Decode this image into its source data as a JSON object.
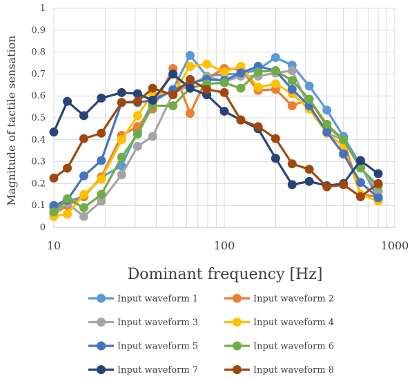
{
  "chart_data": {
    "type": "line",
    "title": "",
    "xlabel": "Dominant frequency [Hz]",
    "ylabel": "Magnitude of tactile sensation",
    "x_scale": "log",
    "xlim": [
      10,
      1000
    ],
    "ylim": [
      0,
      1
    ],
    "x_ticks": [
      "10",
      "100",
      "1000"
    ],
    "y_ticks": [
      "0",
      "0.1",
      "0.2",
      "0.3",
      "0.4",
      "0.5",
      "0.6",
      "0.7",
      "0.8",
      "0.9",
      "1"
    ],
    "grid": true,
    "legend_position": "bottom",
    "x": [
      10,
      12,
      15,
      19,
      25,
      31,
      38,
      50,
      63,
      79,
      100,
      125,
      158,
      200,
      250,
      315,
      400,
      500,
      630,
      800
    ],
    "series": [
      {
        "name": "Input waveform 1",
        "color": "#5B9BD5",
        "values": [
          0.09,
          0.12,
          0.14,
          0.23,
          0.28,
          0.44,
          0.57,
          0.63,
          0.785,
          0.69,
          0.7,
          0.7,
          0.72,
          0.775,
          0.74,
          0.645,
          0.535,
          0.415,
          0.285,
          0.13
        ]
      },
      {
        "name": "Input waveform 2",
        "color": "#ED7D31",
        "values": [
          0.06,
          0.1,
          0.14,
          0.23,
          0.42,
          0.46,
          0.54,
          0.725,
          0.52,
          0.68,
          0.725,
          0.72,
          0.625,
          0.63,
          0.555,
          0.585,
          0.46,
          0.4,
          0.15,
          0.14
        ]
      },
      {
        "name": "Input waveform 3",
        "color": "#A5A5A5",
        "values": [
          0.07,
          0.11,
          0.05,
          0.12,
          0.24,
          0.37,
          0.415,
          0.61,
          0.65,
          0.69,
          0.665,
          0.69,
          0.69,
          0.705,
          0.715,
          0.55,
          0.43,
          0.4,
          0.275,
          0.165
        ]
      },
      {
        "name": "Input waveform 4",
        "color": "#FFC000",
        "values": [
          0.05,
          0.06,
          0.15,
          0.22,
          0.4,
          0.51,
          0.61,
          0.61,
          0.735,
          0.745,
          0.71,
          0.735,
          0.64,
          0.655,
          0.61,
          0.54,
          0.43,
          0.37,
          0.15,
          0.12
        ]
      },
      {
        "name": "Input waveform 5",
        "color": "#4472C4",
        "values": [
          0.1,
          0.125,
          0.235,
          0.305,
          0.57,
          0.57,
          0.58,
          0.625,
          0.66,
          0.675,
          0.67,
          0.705,
          0.735,
          0.715,
          0.63,
          0.555,
          0.435,
          0.335,
          0.205,
          0.135
        ]
      },
      {
        "name": "Input waveform 6",
        "color": "#70AD47",
        "values": [
          0.07,
          0.13,
          0.09,
          0.15,
          0.32,
          0.425,
          0.555,
          0.555,
          0.635,
          0.655,
          0.66,
          0.635,
          0.71,
          0.715,
          0.67,
          0.585,
          0.47,
          0.4,
          0.27,
          0.19
        ]
      },
      {
        "name": "Input waveform 7",
        "color": "#264478",
        "values": [
          0.435,
          0.575,
          0.51,
          0.59,
          0.615,
          0.61,
          0.58,
          0.7,
          0.635,
          0.605,
          0.53,
          0.49,
          0.45,
          0.315,
          0.195,
          0.21,
          0.19,
          0.2,
          0.305,
          0.245
        ]
      },
      {
        "name": "Input waveform 8",
        "color": "#9E480E",
        "values": [
          0.225,
          0.27,
          0.405,
          0.43,
          0.57,
          0.575,
          0.635,
          0.605,
          0.675,
          0.63,
          0.615,
          0.49,
          0.46,
          0.405,
          0.29,
          0.265,
          0.185,
          0.195,
          0.14,
          0.2
        ]
      }
    ]
  }
}
